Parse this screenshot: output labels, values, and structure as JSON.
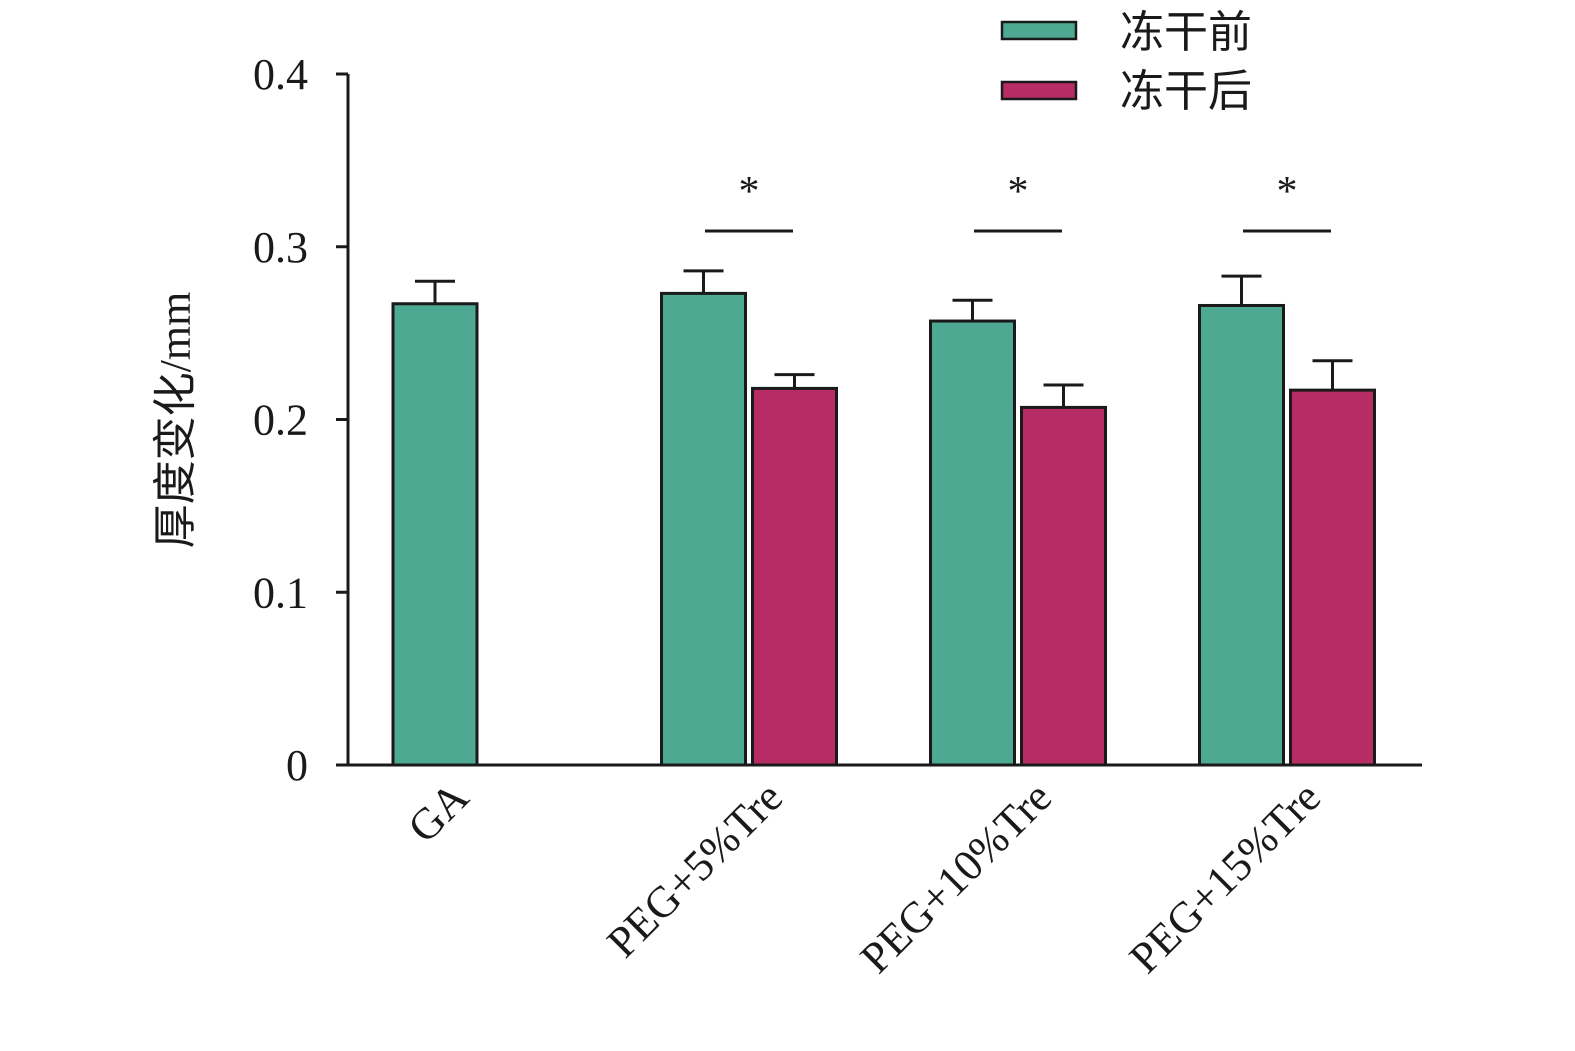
{
  "chart_data": {
    "type": "bar",
    "title": "",
    "xlabel": "",
    "ylabel": "厚度变化/mm",
    "ylim": [
      0,
      0.4
    ],
    "yticks": [
      0,
      0.1,
      0.2,
      0.3,
      0.4
    ],
    "ytick_labels": [
      "0",
      "0.1",
      "0.2",
      "0.3",
      "0.4"
    ],
    "categories": [
      "GA",
      "PEG+5%Tre",
      "PEG+10%Tre",
      "PEG+15%Tre"
    ],
    "series": [
      {
        "name": "冻干前",
        "color": "#4ea993",
        "values": [
          0.267,
          0.273,
          0.257,
          0.266
        ],
        "errors": [
          0.013,
          0.013,
          0.012,
          0.017
        ]
      },
      {
        "name": "冻干后",
        "color": "#b72c65",
        "values": [
          null,
          0.218,
          0.207,
          0.217
        ],
        "errors": [
          null,
          0.008,
          0.013,
          0.017
        ]
      }
    ],
    "significance": [
      {
        "category": "PEG+5%Tre",
        "label": "*"
      },
      {
        "category": "PEG+10%Tre",
        "label": "*"
      },
      {
        "category": "PEG+15%Tre",
        "label": "*"
      }
    ],
    "legend_position": "top-right",
    "grid": false
  }
}
